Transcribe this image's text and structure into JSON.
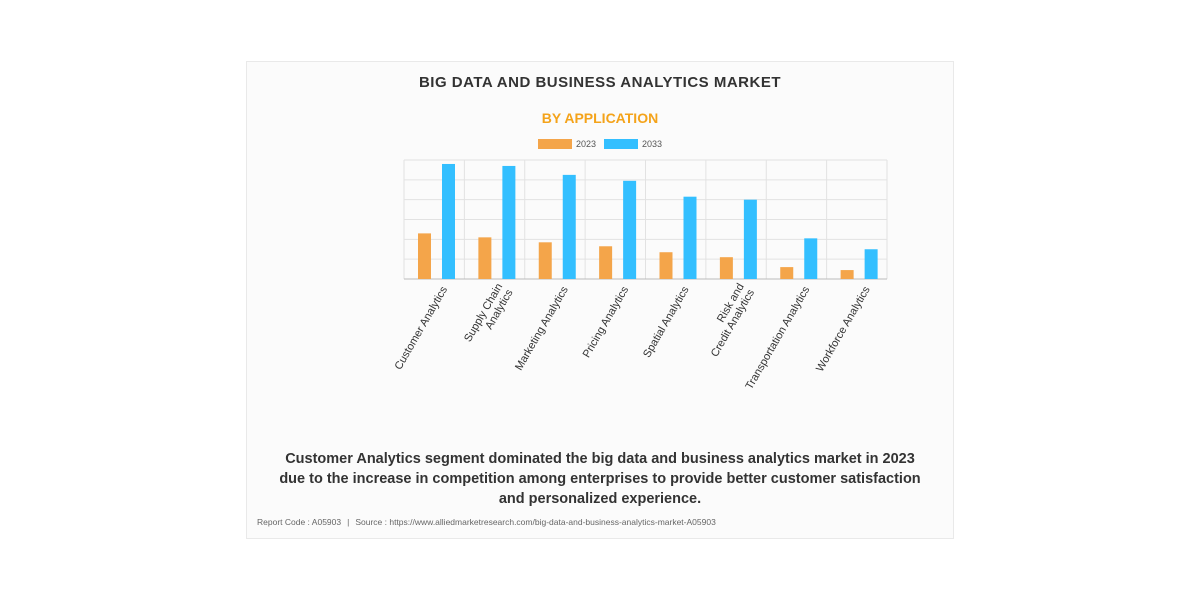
{
  "title": "BIG DATA AND BUSINESS ANALYTICS MARKET",
  "subtitle": "BY APPLICATION",
  "caption": [
    "Customer Analytics segment dominated the big data and business analytics market in 2023",
    "due to the increase in competition among enterprises to provide better customer satisfaction",
    "and personalized experience."
  ],
  "footer": {
    "report_code": "Report Code : A05903",
    "separator": "|",
    "source": "Source : https://www.alliedmarketresearch.com/big-data-and-business-analytics-market-A05903"
  },
  "colors": {
    "series_2023": "#f4a54a",
    "series_2033": "#33bfff",
    "grid": "#e2e2e2"
  },
  "chart_data": {
    "type": "bar",
    "categories": [
      [
        "Customer Analytics"
      ],
      [
        "Supply Chain",
        "Analytics"
      ],
      [
        "Marketing Analytics"
      ],
      [
        "Pricing Analytics"
      ],
      [
        "Spatial Analytics"
      ],
      [
        "Risk and",
        "Credit Analytics"
      ],
      [
        "Transportation Analytics"
      ],
      [
        "Workforce Analytics"
      ]
    ],
    "series": [
      {
        "name": "2023",
        "values": [
          23,
          21,
          18.5,
          16.5,
          13.5,
          11,
          6,
          4.5
        ]
      },
      {
        "name": "2033",
        "values": [
          58,
          57,
          52.5,
          49.5,
          41.5,
          40,
          20.5,
          15
        ]
      }
    ],
    "ylim": [
      0,
      60
    ],
    "grid": true,
    "legend_position": "top-center"
  }
}
